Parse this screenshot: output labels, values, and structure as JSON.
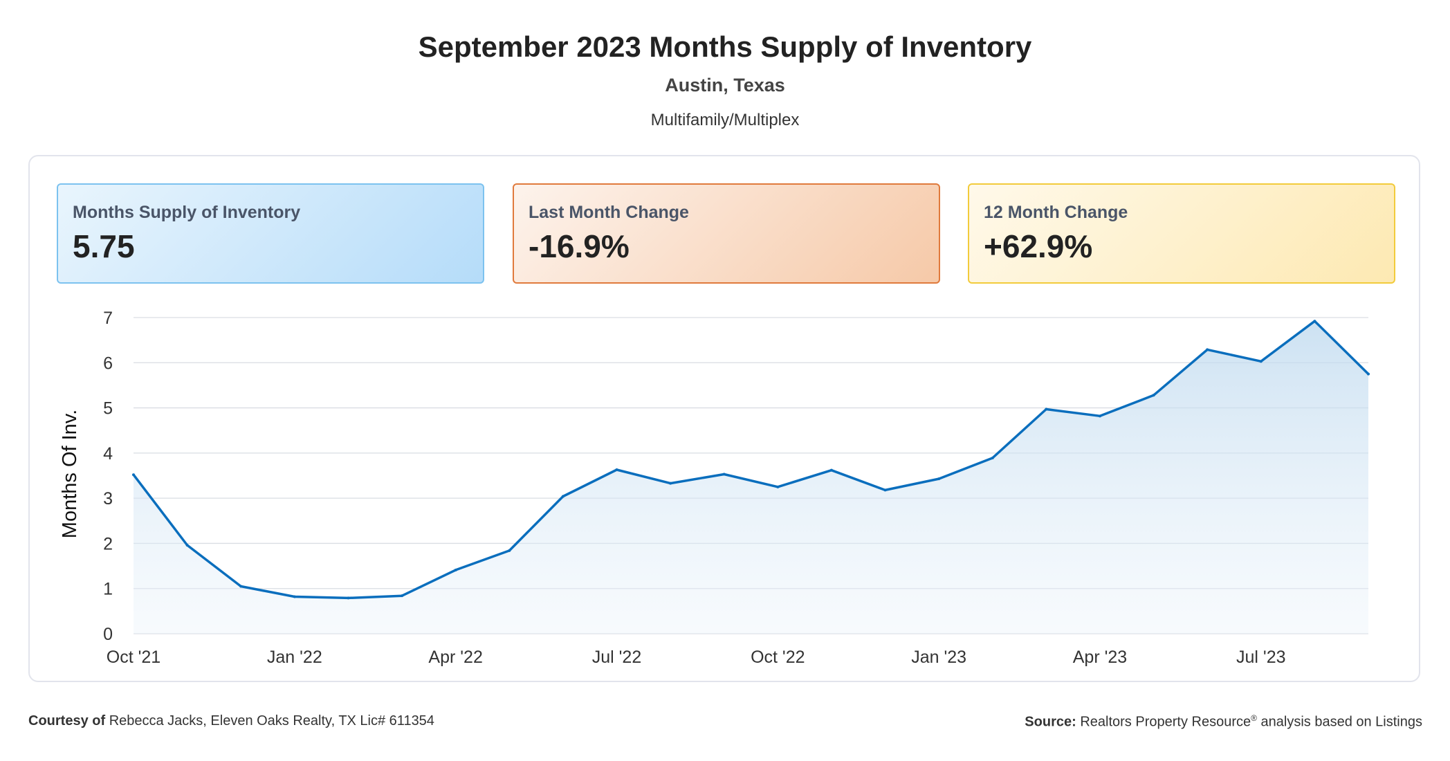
{
  "header": {
    "title": "September 2023 Months Supply of Inventory",
    "location": "Austin, Texas",
    "property_type": "Multifamily/Multiplex"
  },
  "cards": [
    {
      "label": "Months Supply of Inventory",
      "value": "5.75",
      "color": "#7cc2ef"
    },
    {
      "label": "Last Month Change",
      "value": "-16.9%",
      "color": "#e07a3c"
    },
    {
      "label": "12 Month Change",
      "value": "+62.9%",
      "color": "#f2cb3b"
    }
  ],
  "chart_data": {
    "type": "area",
    "ylabel": "Months Of Inv.",
    "xlabel": "",
    "ylim": [
      0,
      7
    ],
    "yticks": [
      0,
      1,
      2,
      3,
      4,
      5,
      6,
      7
    ],
    "grid": true,
    "x": [
      "Oct '21",
      "Nov '21",
      "Dec '21",
      "Jan '22",
      "Feb '22",
      "Mar '22",
      "Apr '22",
      "May '22",
      "Jun '22",
      "Jul '22",
      "Aug '22",
      "Sep '22",
      "Oct '22",
      "Nov '22",
      "Dec '22",
      "Jan '23",
      "Feb '23",
      "Mar '23",
      "Apr '23",
      "May '23",
      "Jun '23",
      "Jul '23",
      "Aug '23",
      "Sep '23"
    ],
    "xtick_labels": [
      "Oct '21",
      "Jan '22",
      "Apr '22",
      "Jul '22",
      "Oct '22",
      "Jan '23",
      "Apr '23",
      "Jul '23"
    ],
    "series": [
      {
        "values": [
          3.52,
          1.96,
          1.05,
          0.82,
          0.79,
          0.84,
          1.41,
          1.84,
          3.04,
          3.63,
          3.33,
          3.53,
          3.25,
          3.62,
          3.18,
          3.43,
          3.89,
          4.97,
          4.82,
          5.28,
          6.29,
          6.03,
          6.92,
          5.75
        ],
        "color": "#0a6ebd"
      }
    ]
  },
  "footer": {
    "courtesy_label": "Courtesy of",
    "courtesy_text": "Rebecca Jacks, Eleven Oaks Realty, TX Lic# 611354",
    "source_label": "Source:",
    "source_text": "Realtors Property Resource",
    "source_reg": "®",
    "source_suffix": "analysis based on Listings"
  }
}
